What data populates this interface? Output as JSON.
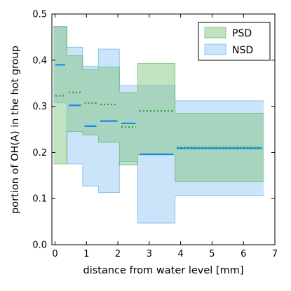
{
  "chart_data": {
    "type": "area",
    "xlabel": "distance from water level [mm]",
    "ylabel": "portion of OH(A) in the hot group",
    "xlim": [
      -0.1,
      7
    ],
    "ylim": [
      0,
      0.5
    ],
    "xticks": [
      0,
      1,
      2,
      3,
      4,
      5,
      6,
      7
    ],
    "yticks": [
      0.0,
      0.1,
      0.2,
      0.3,
      0.4,
      0.5
    ],
    "xtick_labels": [
      "0",
      "1",
      "2",
      "3",
      "4",
      "5",
      "6",
      "7"
    ],
    "ytick_labels": [
      "0.0",
      "0.1",
      "0.2",
      "0.3",
      "0.4",
      "0.5"
    ],
    "grid": false,
    "legend_position": "top-right",
    "series": [
      {
        "name": "PSD",
        "color": "#2ca02c",
        "band_fill": "#78c078",
        "line_style": "dotted",
        "bins": [
          {
            "x0": -0.05,
            "x1": 0.38,
            "low": 0.175,
            "high": 0.473,
            "center": 0.323
          },
          {
            "x0": 0.38,
            "x1": 0.88,
            "low": 0.245,
            "high": 0.41,
            "center": 0.33
          },
          {
            "x0": 0.88,
            "x1": 1.38,
            "low": 0.238,
            "high": 0.38,
            "center": 0.307
          },
          {
            "x0": 1.38,
            "x1": 2.05,
            "low": 0.222,
            "high": 0.385,
            "center": 0.304
          },
          {
            "x0": 2.05,
            "x1": 2.63,
            "low": 0.173,
            "high": 0.33,
            "center": 0.255
          },
          {
            "x0": 2.63,
            "x1": 3.82,
            "low": 0.195,
            "high": 0.393,
            "center": 0.29
          },
          {
            "x0": 3.82,
            "x1": 6.65,
            "low": 0.137,
            "high": 0.285,
            "center": 0.211
          }
        ]
      },
      {
        "name": "NSD",
        "color": "#1e88e5",
        "band_fill": "#8ec4f5",
        "line_style": "solid",
        "bins": [
          {
            "x0": -0.05,
            "x1": 0.38,
            "low": 0.308,
            "high": 0.473,
            "center": 0.39
          },
          {
            "x0": 0.38,
            "x1": 0.88,
            "low": 0.175,
            "high": 0.428,
            "center": 0.302
          },
          {
            "x0": 0.88,
            "x1": 1.38,
            "low": 0.127,
            "high": 0.387,
            "center": 0.257
          },
          {
            "x0": 1.38,
            "x1": 2.05,
            "low": 0.113,
            "high": 0.424,
            "center": 0.268
          },
          {
            "x0": 2.05,
            "x1": 2.63,
            "low": 0.18,
            "high": 0.345,
            "center": 0.263
          },
          {
            "x0": 2.63,
            "x1": 3.82,
            "low": 0.047,
            "high": 0.345,
            "center": 0.196
          },
          {
            "x0": 3.82,
            "x1": 6.65,
            "low": 0.107,
            "high": 0.312,
            "center": 0.209
          }
        ]
      }
    ]
  }
}
